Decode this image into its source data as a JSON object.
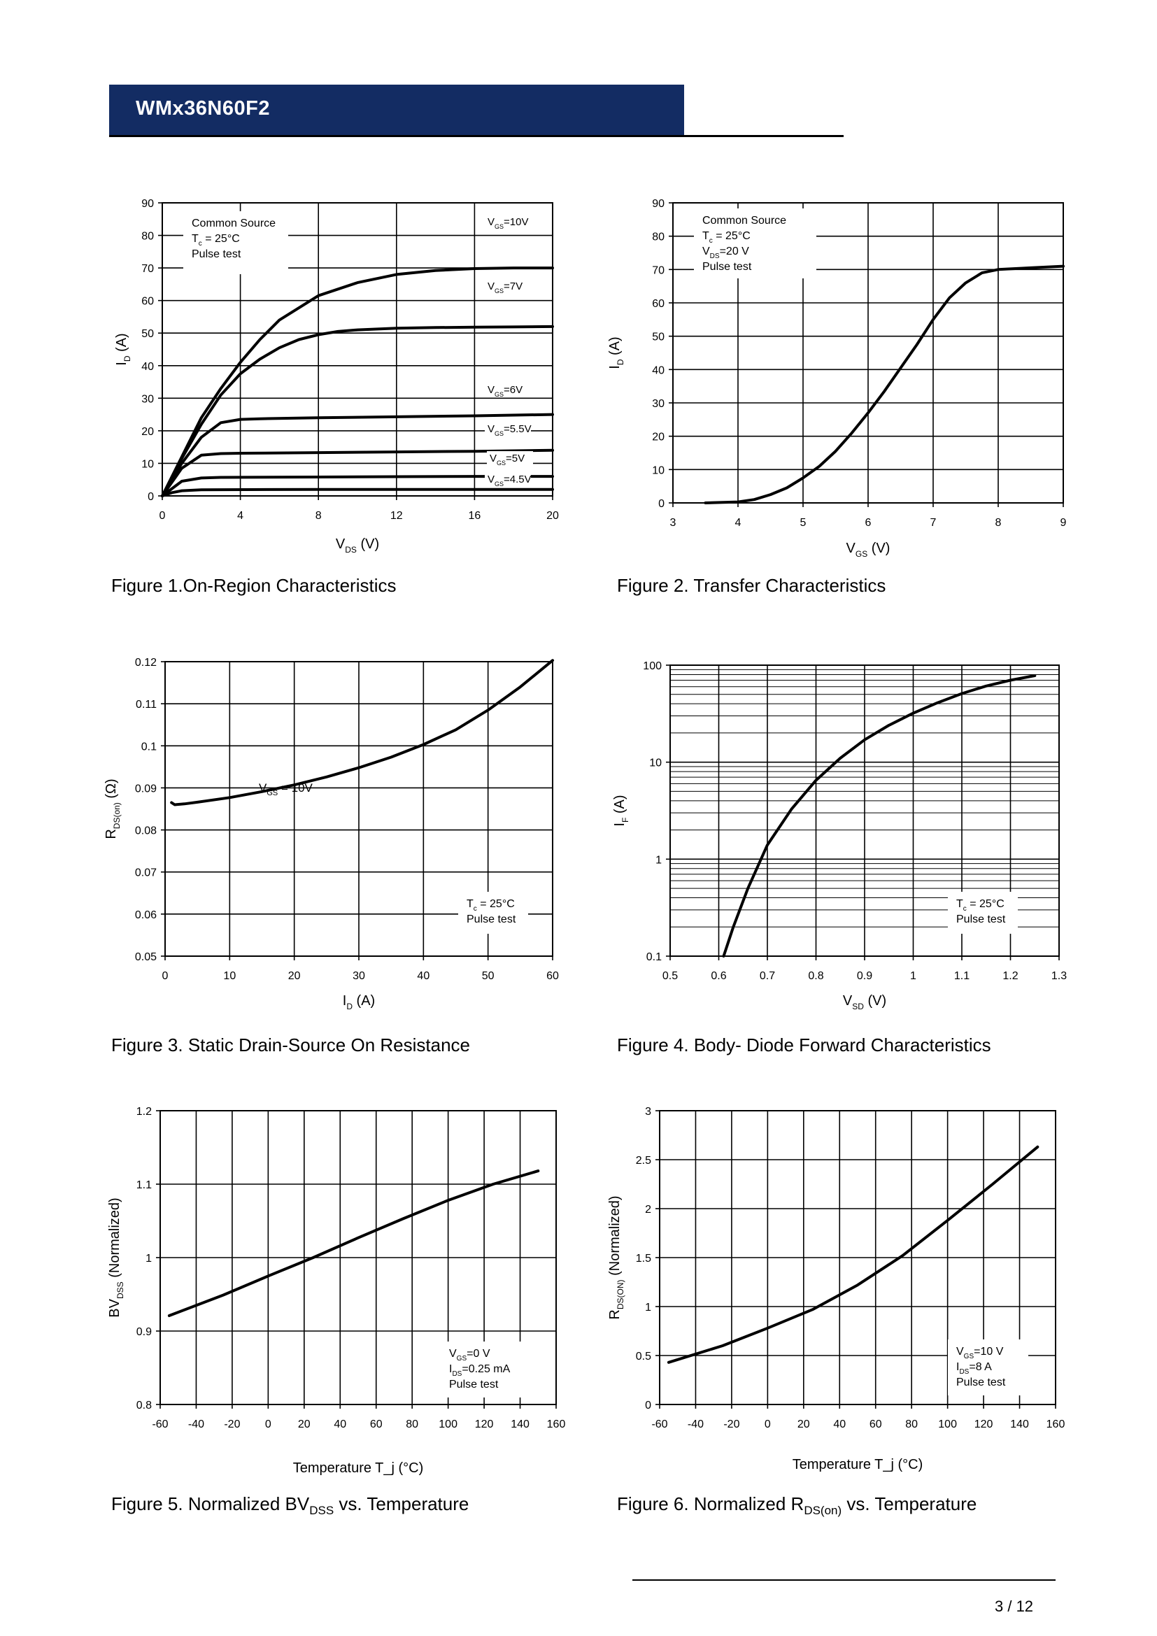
{
  "header": {
    "title": "WMx36N60F2"
  },
  "footer": {
    "page": "3 / 12"
  },
  "captions": {
    "fig1": "Figure 1.On-Region Characteristics",
    "fig2": "Figure 2. Transfer Characteristics",
    "fig3": "Figure 3. Static Drain-Source On Resistance",
    "fig4": "Figure 4. Body- Diode Forward Characteristics",
    "fig5_pre": "Figure 5. Normalized BV",
    "fig5_sub": "DSS",
    "fig5_post": " vs. Temperature",
    "fig6_pre": "Figure 6. Normalized R",
    "fig6_sub": "DS(on)",
    "fig6_post": " vs. Temperature"
  },
  "chart_data": [
    {
      "id": "fig1",
      "type": "line",
      "title": "On-Region Characteristics",
      "xlabel": "V_DS (V)",
      "ylabel": "I_D (A)",
      "xlim": [
        0,
        20
      ],
      "ylim": [
        0,
        90
      ],
      "xticks": [
        0,
        4,
        8,
        12,
        16,
        20
      ],
      "yticks": [
        0,
        10,
        20,
        30,
        40,
        50,
        60,
        70,
        80,
        90
      ],
      "annotation": [
        "Common Source",
        "T_c = 25°C",
        "Pulse test"
      ],
      "series": [
        {
          "name": "V_GS=10V",
          "x": [
            0,
            1,
            2,
            3,
            4,
            5,
            6,
            8,
            10,
            12,
            14,
            16,
            18,
            20
          ],
          "values": [
            0,
            12,
            24,
            33,
            41,
            48,
            54,
            61.5,
            65.5,
            68,
            69.2,
            69.8,
            70,
            70
          ]
        },
        {
          "name": "V_GS=7V",
          "x": [
            0,
            1,
            2,
            3,
            4,
            5,
            6,
            7,
            8,
            9,
            10,
            12,
            14,
            16,
            18,
            20
          ],
          "values": [
            0,
            11.5,
            22,
            31,
            37.5,
            42,
            45.5,
            48,
            49.5,
            50.5,
            51,
            51.5,
            51.7,
            51.8,
            51.9,
            52
          ]
        },
        {
          "name": "V_GS=6V",
          "x": [
            0,
            1,
            2,
            3,
            4,
            5,
            8,
            12,
            16,
            20
          ],
          "values": [
            0,
            10,
            18,
            22.5,
            23.5,
            23.7,
            24,
            24.3,
            24.6,
            25
          ]
        },
        {
          "name": "V_GS=5.5V",
          "x": [
            0,
            1,
            2,
            3,
            4,
            8,
            12,
            16,
            20
          ],
          "values": [
            0,
            8.5,
            12.5,
            13,
            13.1,
            13.3,
            13.5,
            13.7,
            14
          ]
        },
        {
          "name": "V_GS=5V",
          "x": [
            0,
            1,
            2,
            3,
            8,
            12,
            16,
            20
          ],
          "values": [
            0,
            4.5,
            5.5,
            5.7,
            5.8,
            5.9,
            6,
            6
          ]
        },
        {
          "name": "V_GS=4.5V",
          "x": [
            0,
            0.5,
            1,
            2,
            8,
            20
          ],
          "values": [
            0,
            1,
            1.6,
            1.9,
            2,
            2
          ]
        }
      ]
    },
    {
      "id": "fig2",
      "type": "line",
      "title": "Transfer Characteristics",
      "xlabel": "V_GS (V)",
      "ylabel": "I_D (A)",
      "xlim": [
        3,
        9
      ],
      "ylim": [
        0,
        90
      ],
      "xticks": [
        3,
        4,
        5,
        6,
        7,
        8,
        9
      ],
      "yticks": [
        0,
        10,
        20,
        30,
        40,
        50,
        60,
        70,
        80,
        90
      ],
      "annotation": [
        "Common Source",
        "T_c = 25°C",
        "V_DS=20 V",
        "Pulse test"
      ],
      "series": [
        {
          "name": "I_D",
          "x": [
            3.5,
            4,
            4.25,
            4.5,
            4.75,
            5,
            5.25,
            5.5,
            5.75,
            6,
            6.25,
            6.5,
            6.75,
            7,
            7.25,
            7.5,
            7.75,
            8,
            8.5,
            9
          ],
          "values": [
            0,
            0.3,
            1,
            2.5,
            4.5,
            7.5,
            11,
            15.5,
            21,
            27,
            33.5,
            40.5,
            47.5,
            55,
            61.5,
            66,
            69,
            70,
            70.5,
            71
          ]
        }
      ]
    },
    {
      "id": "fig3",
      "type": "line",
      "title": "Static Drain-Source On Resistance",
      "xlabel": "I_D (A)",
      "ylabel": "R_DS(on) (Ω)",
      "xlim": [
        0,
        60
      ],
      "ylim": [
        0.05,
        0.12
      ],
      "xticks": [
        0,
        10,
        20,
        30,
        40,
        50,
        60
      ],
      "yticks": [
        0.05,
        0.06,
        0.07,
        0.08,
        0.09,
        0.1,
        0.11,
        0.12
      ],
      "ytick_labels": [
        "0.05",
        "0.06",
        "0.07",
        "0.08",
        "0.09",
        "0.1",
        "0.11",
        "0.12"
      ],
      "series_label": "V_GS = 10V",
      "annotation": [
        "T_c = 25°C",
        "Pulse test"
      ],
      "series": [
        {
          "name": "V_GS=10V",
          "x": [
            1,
            1.5,
            3,
            5,
            10,
            15,
            20,
            25,
            30,
            35,
            40,
            45,
            50,
            55,
            60
          ],
          "values": [
            0.0865,
            0.086,
            0.0862,
            0.0866,
            0.0877,
            0.0891,
            0.0907,
            0.0926,
            0.0948,
            0.0973,
            0.1003,
            0.1038,
            0.1085,
            0.114,
            0.1203
          ]
        }
      ]
    },
    {
      "id": "fig4",
      "type": "line",
      "title": "Body- Diode Forward Characteristics",
      "xlabel": "V_SD (V)",
      "ylabel": "I_F (A)",
      "xlim": [
        0.5,
        1.3
      ],
      "ylim": [
        0.1,
        100
      ],
      "yscale": "log",
      "xticks": [
        0.5,
        0.6,
        0.7,
        0.8,
        0.9,
        1.0,
        1.1,
        1.2,
        1.3
      ],
      "xtick_labels": [
        "0.5",
        "0.6",
        "0.7",
        "0.8",
        "0.9",
        "1",
        "1.1",
        "1.2",
        "1.3"
      ],
      "yticks": [
        0.1,
        1,
        10,
        100
      ],
      "ytick_labels": [
        "0.1",
        "1",
        "10",
        "100"
      ],
      "annotation": [
        "T_c = 25°C",
        "Pulse test"
      ],
      "series": [
        {
          "name": "I_F",
          "x": [
            0.61,
            0.63,
            0.66,
            0.7,
            0.75,
            0.8,
            0.85,
            0.9,
            0.95,
            1.0,
            1.05,
            1.1,
            1.15,
            1.2,
            1.25
          ],
          "values": [
            0.1,
            0.2,
            0.5,
            1.4,
            3.3,
            6.5,
            11,
            17,
            24,
            32,
            41,
            51,
            61,
            70,
            78
          ]
        }
      ]
    },
    {
      "id": "fig5",
      "type": "line",
      "title": "Normalized BVDSS vs. Temperature",
      "xlabel": "Temperature T_j (°C)",
      "ylabel": "BV_DSS (Normalized)",
      "xlim": [
        -60,
        160
      ],
      "ylim": [
        0.8,
        1.2
      ],
      "xticks": [
        -60,
        -40,
        -20,
        0,
        20,
        40,
        60,
        80,
        100,
        120,
        140,
        160
      ],
      "yticks": [
        0.8,
        0.9,
        1.0,
        1.1,
        1.2
      ],
      "ytick_labels": [
        "0.8",
        "0.9",
        "1",
        "1.1",
        "1.2"
      ],
      "annotation": [
        "V_GS=0 V",
        "I_DS=0.25 mA",
        "Pulse test"
      ],
      "series": [
        {
          "name": "BV_DSS",
          "x": [
            -55,
            -25,
            0,
            25,
            50,
            75,
            100,
            125,
            150
          ],
          "values": [
            0.921,
            0.949,
            0.975,
            1.0,
            1.027,
            1.053,
            1.078,
            1.1,
            1.118
          ]
        }
      ]
    },
    {
      "id": "fig6",
      "type": "line",
      "title": "Normalized RDS(on) vs. Temperature",
      "xlabel": "Temperature T_j (°C)",
      "ylabel": "R_DS(ON) (Normalized)",
      "xlim": [
        -60,
        160
      ],
      "ylim": [
        0,
        3
      ],
      "xticks": [
        -60,
        -40,
        -20,
        0,
        20,
        40,
        60,
        80,
        100,
        120,
        140,
        160
      ],
      "yticks": [
        0,
        0.5,
        1.0,
        1.5,
        2.0,
        2.5,
        3.0
      ],
      "ytick_labels": [
        "0",
        "0.5",
        "1",
        "1.5",
        "2",
        "2.5",
        "3"
      ],
      "annotation": [
        "V_GS=10 V",
        "I_DS=8 A",
        "Pulse test"
      ],
      "series": [
        {
          "name": "R_DS(ON)",
          "x": [
            -55,
            -25,
            0,
            25,
            50,
            75,
            100,
            125,
            150
          ],
          "values": [
            0.43,
            0.6,
            0.78,
            0.97,
            1.22,
            1.52,
            1.88,
            2.25,
            2.63
          ]
        }
      ]
    }
  ]
}
